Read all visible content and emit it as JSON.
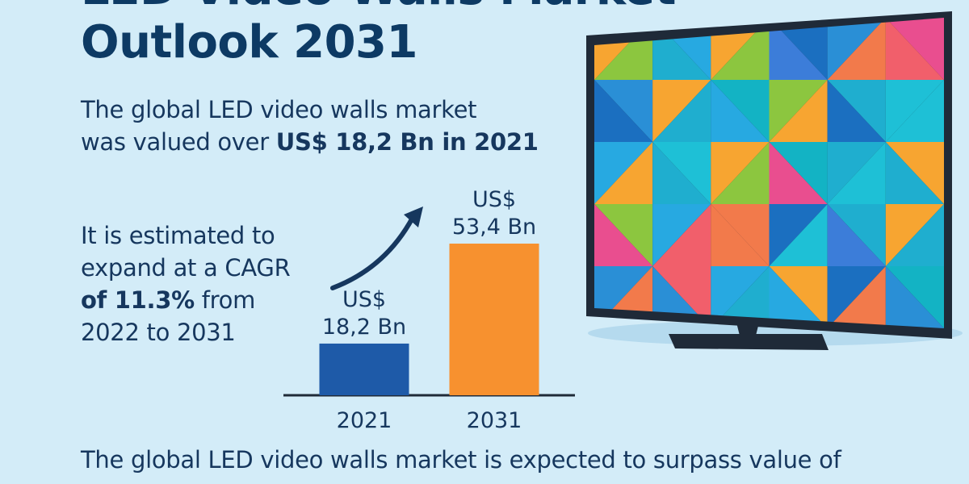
{
  "title": {
    "line1": "LED Video Walls Market",
    "line2": "Outlook 2031"
  },
  "intro": {
    "line1": "The global LED video walls market",
    "line2_prefix": "was valued over ",
    "line2_bold": "US$ 18,2 Bn in 2021"
  },
  "cagr": {
    "line1": "It is estimated to",
    "line2": "expand at a CAGR",
    "line3_bold": "of 11.3%",
    "line3_rest": " from",
    "line4": "2022 to 2031"
  },
  "footer": {
    "text": "The global LED video walls market is expected to surpass value of"
  },
  "chart_data": {
    "type": "bar",
    "categories": [
      "2021",
      "2031"
    ],
    "values": [
      18.2,
      53.4
    ],
    "value_labels": [
      {
        "prefix": "US$",
        "amount": "18,2 Bn"
      },
      {
        "prefix": "US$",
        "amount": "53,4 Bn"
      }
    ],
    "colors": [
      "#1e5aa8",
      "#f7912f"
    ],
    "ylim": [
      0,
      53.4
    ],
    "grid": false,
    "legend": "none"
  },
  "colors": {
    "background": "#d3ecf8",
    "title": "#0d3a64",
    "text": "#16375e",
    "tv_frame": "#1f2a38"
  }
}
